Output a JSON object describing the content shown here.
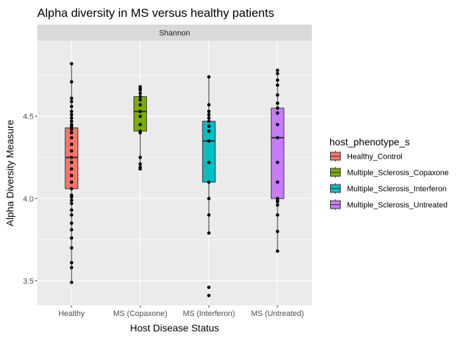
{
  "chart_data": {
    "type": "box",
    "title": "Alpha diversity in MS versus healthy patients",
    "facet_label": "Shannon",
    "xlabel": "Host Disease Status",
    "ylabel": "Alpha Diversity Measure",
    "ylim": [
      3.35,
      4.96
    ],
    "yticks": [
      3.5,
      4.0,
      4.5
    ],
    "ytick_labels": [
      "3.5",
      "4.0",
      "4.5"
    ],
    "grid": true,
    "legend": {
      "title": "host_phenotype_s",
      "position": "right",
      "entries": [
        "Healthy_Control",
        "Multiple_Sclerosis_Copaxone",
        "Multiple_Sclerosis_Interferon",
        "Multiple_Sclerosis_Untreated"
      ]
    },
    "categories": [
      "Healthy",
      "MS (Copaxone)",
      "MS (Interferon)",
      "MS (Untreated)"
    ],
    "series": [
      {
        "name": "Healthy_Control",
        "color": "#F8766D",
        "whisker_low": 3.49,
        "q1": 4.06,
        "median": 4.25,
        "q3": 4.43,
        "whisker_high": 4.82,
        "points": [
          3.49,
          3.58,
          3.61,
          3.7,
          3.76,
          3.81,
          3.85,
          3.9,
          3.93,
          3.97,
          3.99,
          4.01,
          4.02,
          4.06,
          4.1,
          4.14,
          4.18,
          4.22,
          4.25,
          4.29,
          4.33,
          4.37,
          4.4,
          4.42,
          4.43,
          4.44,
          4.45,
          4.47,
          4.49,
          4.51,
          4.53,
          4.56,
          4.59,
          4.61,
          4.71,
          4.82
        ]
      },
      {
        "name": "Multiple_Sclerosis_Copaxone",
        "color": "#7CAE00",
        "whisker_low": 4.18,
        "q1": 4.41,
        "median": 4.53,
        "q3": 4.62,
        "whisker_high": 4.68,
        "points": [
          4.18,
          4.19,
          4.21,
          4.25,
          4.4,
          4.41,
          4.45,
          4.5,
          4.53,
          4.57,
          4.6,
          4.62,
          4.64,
          4.66,
          4.67,
          4.68
        ]
      },
      {
        "name": "Multiple_Sclerosis_Interferon",
        "color": "#00BFC4",
        "whisker_low": 3.79,
        "q1": 4.1,
        "median": 4.35,
        "q3": 4.47,
        "whisker_high": 4.74,
        "points": [
          3.41,
          3.46,
          3.79,
          3.9,
          4.0,
          4.1,
          4.22,
          4.35,
          4.41,
          4.44,
          4.47,
          4.49,
          4.51,
          4.53,
          4.57,
          4.74
        ]
      },
      {
        "name": "Multiple_Sclerosis_Untreated",
        "color": "#C77CFF",
        "whisker_low": 3.68,
        "q1": 4.0,
        "median": 4.37,
        "q3": 4.55,
        "whisker_high": 4.78,
        "points": [
          3.68,
          3.8,
          3.9,
          3.96,
          3.98,
          3.99,
          4.0,
          4.1,
          4.22,
          4.37,
          4.45,
          4.52,
          4.55,
          4.58,
          4.63,
          4.69,
          4.72,
          4.76,
          4.78
        ]
      }
    ]
  }
}
